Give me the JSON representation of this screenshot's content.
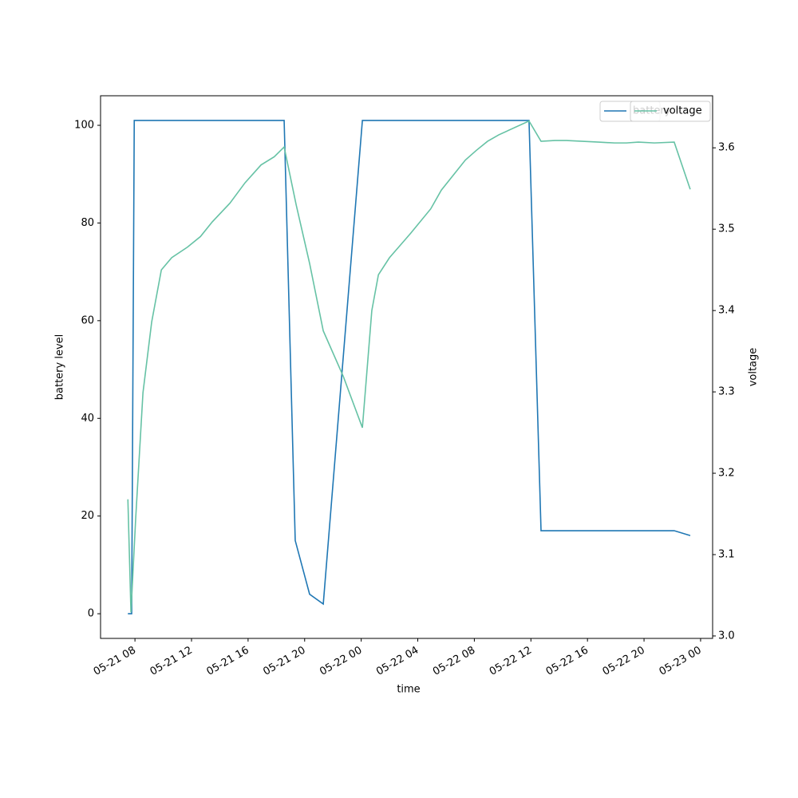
{
  "chart_data": {
    "type": "line",
    "x_label": "time",
    "y_label": "battery level",
    "y2_label": "voltage",
    "xlim": [
      "05-21 05:34",
      "05-23 00:51"
    ],
    "xticks": [
      {
        "value": "05-21 08:00",
        "label": "05-21 08"
      },
      {
        "value": "05-21 12:00",
        "label": "05-21 12"
      },
      {
        "value": "05-21 16:00",
        "label": "05-21 16"
      },
      {
        "value": "05-21 20:00",
        "label": "05-21 20"
      },
      {
        "value": "05-22 00:00",
        "label": "05-22 00"
      },
      {
        "value": "05-22 04:00",
        "label": "05-22 04"
      },
      {
        "value": "05-22 08:00",
        "label": "05-22 08"
      },
      {
        "value": "05-22 12:00",
        "label": "05-22 12"
      },
      {
        "value": "05-22 16:00",
        "label": "05-22 16"
      },
      {
        "value": "05-22 20:00",
        "label": "05-22 20"
      },
      {
        "value": "05-23 00:00",
        "label": "05-23 00"
      }
    ],
    "ylim": [
      -5.05,
      106.05
    ],
    "yticks": [
      0,
      20,
      40,
      60,
      80,
      100
    ],
    "y2lim": [
      2.997,
      3.664
    ],
    "y2ticks": [
      {
        "value": 3,
        "label": "3.0"
      },
      3.1,
      3.2,
      3.3,
      3.4,
      3.5,
      3.6
    ],
    "legend": "upper right",
    "series": [
      {
        "name": "battery",
        "color": "#1f77b4",
        "x": [
          "05-21 07:30",
          "05-21 07:46",
          "05-21 07:57",
          "05-21 18:33",
          "05-21 19:20",
          "05-21 20:21",
          "05-21 21:19",
          "05-22 00:05",
          "05-22 11:52",
          "05-22 12:43",
          "05-22 22:08",
          "05-22 23:16"
        ],
        "values": [
          0,
          0,
          101,
          101,
          15,
          4,
          2,
          101,
          101,
          17,
          17,
          16
        ]
      },
      {
        "name": "voltage",
        "color": "#66c2a5",
        "axis": "y2",
        "x": [
          "05-21 07:30",
          "05-21 07:43",
          "05-21 08:03",
          "05-21 08:34",
          "05-21 09:11",
          "05-21 09:52",
          "05-21 10:36",
          "05-21 11:43",
          "05-21 12:38",
          "05-21 13:28",
          "05-21 14:43",
          "05-21 15:47",
          "05-21 16:55",
          "05-21 17:51",
          "05-21 18:33",
          "05-21 19:24",
          "05-21 20:21",
          "05-21 21:19",
          "05-21 22:44",
          "05-22 00:05",
          "05-22 00:45",
          "05-22 01:13",
          "05-22 02:00",
          "05-22 03:30",
          "05-22 04:55",
          "05-22 05:40",
          "05-22 07:22",
          "05-22 08:09",
          "05-22 08:56",
          "05-22 09:44",
          "05-22 11:52",
          "05-22 12:43",
          "05-22 13:41",
          "05-22 14:31",
          "05-22 15:39",
          "05-22 16:47",
          "05-22 17:55",
          "05-22 18:45",
          "05-22 19:36",
          "05-22 20:44",
          "05-22 22:08",
          "05-22 23:16"
        ],
        "values": [
          3.168,
          3.029,
          3.144,
          3.299,
          3.386,
          3.45,
          3.465,
          3.478,
          3.491,
          3.509,
          3.532,
          3.557,
          3.579,
          3.589,
          3.601,
          3.53,
          3.458,
          3.375,
          3.319,
          3.256,
          3.4,
          3.444,
          3.465,
          3.495,
          3.525,
          3.548,
          3.585,
          3.597,
          3.608,
          3.616,
          3.633,
          3.608,
          3.609,
          3.609,
          3.608,
          3.607,
          3.606,
          3.606,
          3.607,
          3.606,
          3.607,
          3.549
        ]
      }
    ]
  }
}
